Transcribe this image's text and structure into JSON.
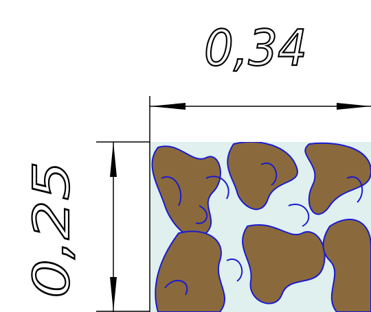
{
  "dimensions": [
    {
      "label": "0,34"
    },
    {
      "label": "0,25"
    }
  ]
}
